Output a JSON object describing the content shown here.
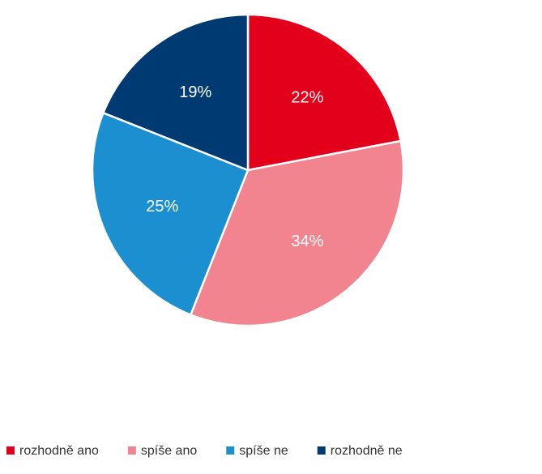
{
  "chart_data": {
    "type": "pie",
    "categories": [
      "rozhodně ano",
      "spíše ano",
      "spíše ne",
      "rozhodně ne"
    ],
    "values": [
      22,
      34,
      25,
      19
    ],
    "value_labels": [
      "22%",
      "34%",
      "25%",
      "19%"
    ],
    "colors": [
      "#e2001a",
      "#f2848f",
      "#1b8fd0",
      "#003a73"
    ],
    "legend": "bottom"
  }
}
